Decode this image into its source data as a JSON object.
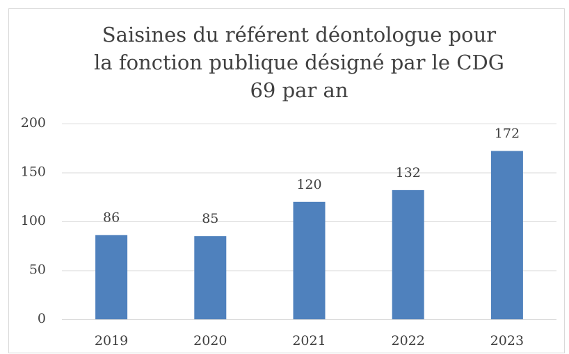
{
  "chart_data": {
    "type": "bar",
    "title": "Saisines du référent déontologue pour la fonction publique désigné par le CDG 69 par an",
    "categories": [
      "2019",
      "2020",
      "2021",
      "2022",
      "2023"
    ],
    "values": [
      86,
      85,
      120,
      132,
      172
    ],
    "color": "#4f81bd",
    "ylim": [
      0,
      200
    ],
    "yticks": [
      0,
      50,
      100,
      150,
      200
    ],
    "grid": true,
    "data_labels": true
  }
}
